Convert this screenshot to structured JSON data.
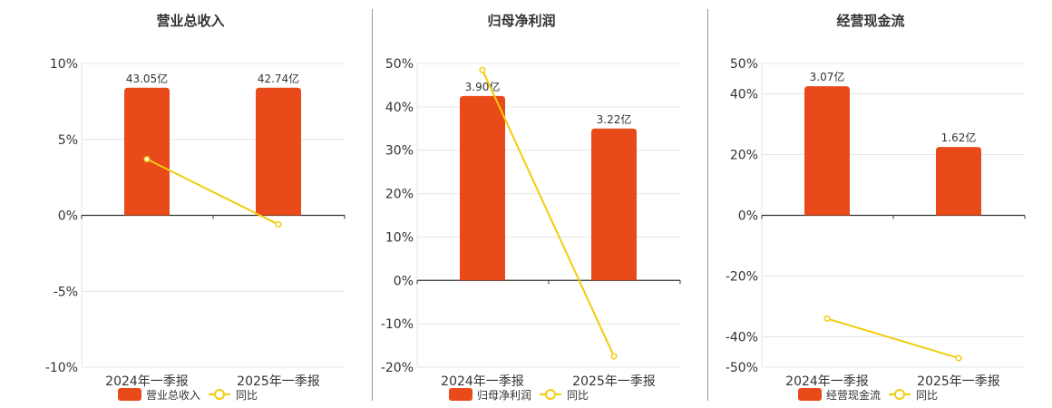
{
  "colors": {
    "bar": "#E84A1A",
    "line": "#F2CC0C",
    "axis": "#333333",
    "grid": "#E6E6E6",
    "divider": "#999999",
    "text": "#333333"
  },
  "chart_data": [
    {
      "type": "bar",
      "title": "营业总收入",
      "categories": [
        "2024年一季报",
        "2025年一季报"
      ],
      "ylim": [
        -10,
        10
      ],
      "yticks": [
        10,
        5,
        0,
        -5,
        -10
      ],
      "ytick_labels": [
        "10%",
        "5%",
        "0%",
        "-5%",
        "-10%"
      ],
      "grid": true,
      "legend_position": "bottom",
      "series": [
        {
          "name": "营业总收入",
          "kind": "bar",
          "values": [
            8.4,
            8.4
          ],
          "labels": [
            "43.05亿",
            "42.74亿"
          ]
        },
        {
          "name": "同比",
          "kind": "line",
          "values": [
            3.7,
            -0.6
          ]
        }
      ]
    },
    {
      "type": "bar",
      "title": "归母净利润",
      "categories": [
        "2024年一季报",
        "2025年一季报"
      ],
      "ylim": [
        -20,
        50
      ],
      "yticks": [
        50,
        40,
        30,
        20,
        10,
        0,
        -10,
        -20
      ],
      "ytick_labels": [
        "50%",
        "40%",
        "30%",
        "20%",
        "10%",
        "0%",
        "-10%",
        "-20%"
      ],
      "grid": true,
      "legend_position": "bottom",
      "series": [
        {
          "name": "归母净利润",
          "kind": "bar",
          "values": [
            42.5,
            35.0
          ],
          "labels": [
            "3.90亿",
            "3.22亿"
          ]
        },
        {
          "name": "同比",
          "kind": "line",
          "values": [
            48.5,
            -17.5
          ]
        }
      ]
    },
    {
      "type": "bar",
      "title": "经营现金流",
      "categories": [
        "2024年一季报",
        "2025年一季报"
      ],
      "ylim": [
        -50,
        50
      ],
      "yticks": [
        50,
        40,
        20,
        0,
        -20,
        -40,
        -50
      ],
      "ytick_labels": [
        "50%",
        "40%",
        "20%",
        "0%",
        "-20%",
        "-40%",
        "-50%"
      ],
      "grid": true,
      "legend_position": "bottom",
      "series": [
        {
          "name": "经营现金流",
          "kind": "bar",
          "values": [
            42.5,
            22.5
          ],
          "labels": [
            "3.07亿",
            "1.62亿"
          ]
        },
        {
          "name": "同比",
          "kind": "line",
          "values": [
            -34,
            -47
          ]
        }
      ]
    }
  ]
}
